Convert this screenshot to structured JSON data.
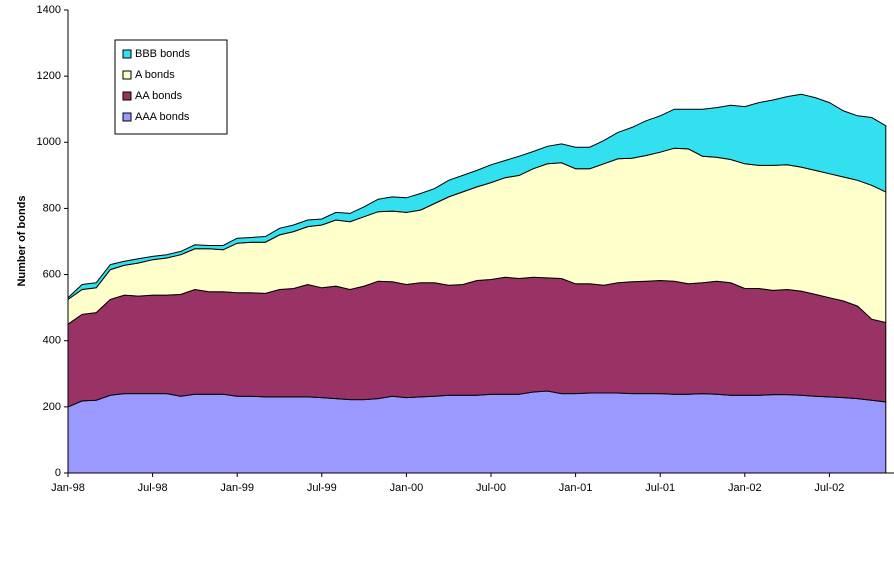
{
  "chart_data": {
    "type": "stacked-area",
    "y_label": "Number of bonds",
    "categories": [
      "Jan-98",
      null,
      null,
      null,
      null,
      null,
      "Jul-98",
      null,
      null,
      null,
      null,
      null,
      "Jan-99",
      null,
      null,
      null,
      null,
      null,
      "Jul-99",
      null,
      null,
      null,
      null,
      null,
      "Jan-00",
      null,
      null,
      null,
      null,
      null,
      "Jul-00",
      null,
      null,
      null,
      null,
      null,
      "Jan-01",
      null,
      null,
      null,
      null,
      null,
      "Jul-01",
      null,
      null,
      null,
      null,
      null,
      "Jan-02",
      null,
      null,
      null,
      null,
      null,
      "Jul-02",
      null,
      null,
      null,
      null
    ],
    "ylim": [
      0,
      1400
    ],
    "yticks": [
      0,
      200,
      400,
      600,
      800,
      1000,
      1200,
      1400
    ],
    "series": [
      {
        "name": "AAA bonds",
        "color": "#9999ff",
        "values": [
          200,
          218,
          220,
          235,
          240,
          240,
          240,
          240,
          232,
          238,
          238,
          238,
          232,
          232,
          230,
          230,
          230,
          230,
          228,
          225,
          222,
          222,
          225,
          232,
          228,
          230,
          232,
          235,
          235,
          235,
          238,
          238,
          238,
          245,
          248,
          240,
          240,
          242,
          242,
          242,
          240,
          240,
          240,
          238,
          238,
          240,
          238,
          235,
          235,
          235,
          237,
          237,
          235,
          232,
          230,
          228,
          225,
          220,
          215
        ]
      },
      {
        "name": "AA bonds",
        "color": "#993366",
        "values": [
          250,
          262,
          265,
          290,
          298,
          295,
          298,
          298,
          308,
          317,
          310,
          310,
          313,
          313,
          313,
          325,
          328,
          340,
          332,
          340,
          333,
          343,
          355,
          346,
          342,
          345,
          343,
          333,
          335,
          347,
          347,
          354,
          350,
          347,
          342,
          348,
          332,
          330,
          326,
          333,
          338,
          340,
          342,
          342,
          334,
          335,
          342,
          340,
          323,
          323,
          315,
          318,
          315,
          308,
          300,
          292,
          280,
          245,
          240
        ]
      },
      {
        "name": "A bonds",
        "color": "#ffffcc",
        "values": [
          75,
          75,
          75,
          90,
          90,
          100,
          107,
          112,
          120,
          123,
          130,
          127,
          150,
          153,
          155,
          165,
          172,
          175,
          190,
          200,
          205,
          210,
          210,
          214,
          218,
          220,
          240,
          267,
          280,
          283,
          293,
          301,
          312,
          328,
          345,
          350,
          348,
          348,
          367,
          375,
          374,
          380,
          388,
          402,
          408,
          383,
          375,
          373,
          377,
          372,
          378,
          377,
          375,
          375,
          375,
          375,
          380,
          405,
          395
        ]
      },
      {
        "name": "BBB bonds",
        "color": "#33e0f0",
        "values": [
          5,
          15,
          15,
          15,
          12,
          13,
          10,
          10,
          10,
          12,
          10,
          13,
          15,
          14,
          17,
          20,
          20,
          20,
          18,
          23,
          25,
          30,
          38,
          43,
          44,
          50,
          45,
          50,
          50,
          50,
          54,
          52,
          58,
          52,
          53,
          57,
          65,
          65,
          70,
          80,
          93,
          105,
          110,
          118,
          120,
          142,
          150,
          164,
          173,
          190,
          198,
          206,
          220,
          220,
          215,
          200,
          195,
          205,
          200
        ]
      }
    ],
    "legend": "upper left"
  }
}
